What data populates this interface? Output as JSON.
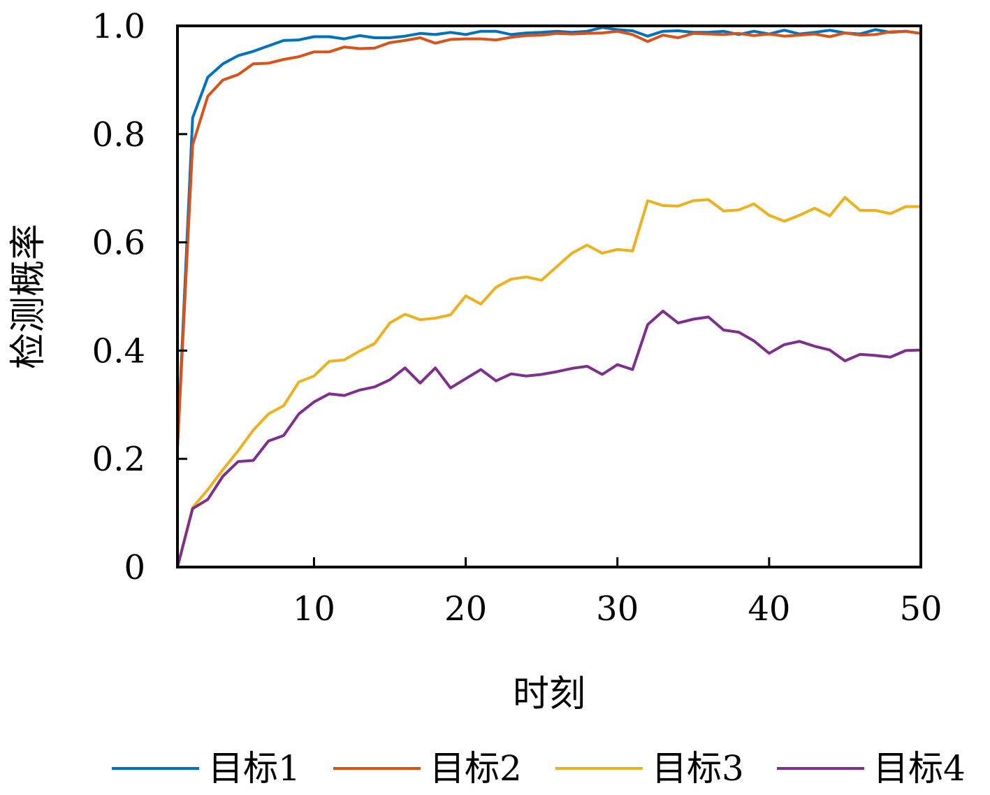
{
  "chart_data": {
    "type": "line",
    "title": "",
    "xlabel": "时刻",
    "ylabel": "检测概率",
    "xlim": [
      1,
      50
    ],
    "ylim": [
      0,
      1
    ],
    "xticks": [
      10,
      20,
      30,
      40,
      50
    ],
    "xtick_labels": [
      "10",
      "20",
      "30",
      "40",
      "50"
    ],
    "yticks": [
      0,
      0.2,
      0.4,
      0.6,
      0.8,
      1.0
    ],
    "ytick_labels": [
      "0",
      "0.2",
      "0.4",
      "0.6",
      "0.8",
      "1.0"
    ],
    "grid": false,
    "legend_position": "bottom",
    "x": [
      1,
      2,
      3,
      4,
      5,
      6,
      7,
      8,
      9,
      10,
      11,
      12,
      13,
      14,
      15,
      16,
      17,
      18,
      19,
      20,
      21,
      22,
      23,
      24,
      25,
      26,
      27,
      28,
      29,
      30,
      31,
      32,
      33,
      34,
      35,
      36,
      37,
      38,
      39,
      40,
      41,
      42,
      43,
      44,
      45,
      46,
      47,
      48,
      49,
      50
    ],
    "series": [
      {
        "name": "目标1",
        "color": "#0072BD",
        "values": [
          0.22,
          0.83,
          0.905,
          0.93,
          0.945,
          0.953,
          0.963,
          0.973,
          0.974,
          0.98,
          0.98,
          0.976,
          0.982,
          0.978,
          0.978,
          0.981,
          0.986,
          0.984,
          0.988,
          0.984,
          0.99,
          0.99,
          0.984,
          0.987,
          0.988,
          0.99,
          0.988,
          0.99,
          0.997,
          0.993,
          0.991,
          0.981,
          0.99,
          0.991,
          0.988,
          0.988,
          0.99,
          0.984,
          0.99,
          0.985,
          0.992,
          0.985,
          0.988,
          0.992,
          0.987,
          0.985,
          0.993,
          0.988,
          0.99,
          0.986
        ]
      },
      {
        "name": "目标2",
        "color": "#D95319",
        "values": [
          0.22,
          0.78,
          0.87,
          0.9,
          0.91,
          0.93,
          0.931,
          0.938,
          0.943,
          0.952,
          0.952,
          0.961,
          0.958,
          0.959,
          0.969,
          0.973,
          0.978,
          0.968,
          0.975,
          0.976,
          0.976,
          0.974,
          0.979,
          0.982,
          0.983,
          0.986,
          0.985,
          0.986,
          0.987,
          0.99,
          0.984,
          0.971,
          0.983,
          0.978,
          0.986,
          0.985,
          0.984,
          0.986,
          0.982,
          0.985,
          0.981,
          0.983,
          0.985,
          0.98,
          0.987,
          0.983,
          0.984,
          0.989,
          0.99,
          0.986
        ]
      },
      {
        "name": "目标3",
        "color": "#EDB120",
        "values": [
          0,
          0.11,
          0.143,
          0.18,
          0.215,
          0.253,
          0.283,
          0.298,
          0.342,
          0.353,
          0.38,
          0.383,
          0.399,
          0.413,
          0.451,
          0.467,
          0.457,
          0.46,
          0.466,
          0.501,
          0.486,
          0.517,
          0.532,
          0.536,
          0.53,
          0.555,
          0.58,
          0.595,
          0.58,
          0.587,
          0.584,
          0.677,
          0.668,
          0.667,
          0.677,
          0.679,
          0.658,
          0.66,
          0.671,
          0.65,
          0.639,
          0.65,
          0.663,
          0.649,
          0.683,
          0.659,
          0.659,
          0.653,
          0.666,
          0.666
        ]
      },
      {
        "name": "目标4",
        "color": "#7E2F8E",
        "values": [
          0,
          0.108,
          0.125,
          0.168,
          0.195,
          0.197,
          0.233,
          0.243,
          0.283,
          0.305,
          0.32,
          0.317,
          0.327,
          0.333,
          0.346,
          0.368,
          0.34,
          0.368,
          0.331,
          0.348,
          0.365,
          0.344,
          0.357,
          0.353,
          0.356,
          0.361,
          0.367,
          0.371,
          0.356,
          0.374,
          0.365,
          0.448,
          0.473,
          0.451,
          0.458,
          0.462,
          0.438,
          0.434,
          0.418,
          0.395,
          0.411,
          0.417,
          0.408,
          0.401,
          0.381,
          0.393,
          0.391,
          0.388,
          0.4,
          0.401
        ]
      }
    ]
  }
}
